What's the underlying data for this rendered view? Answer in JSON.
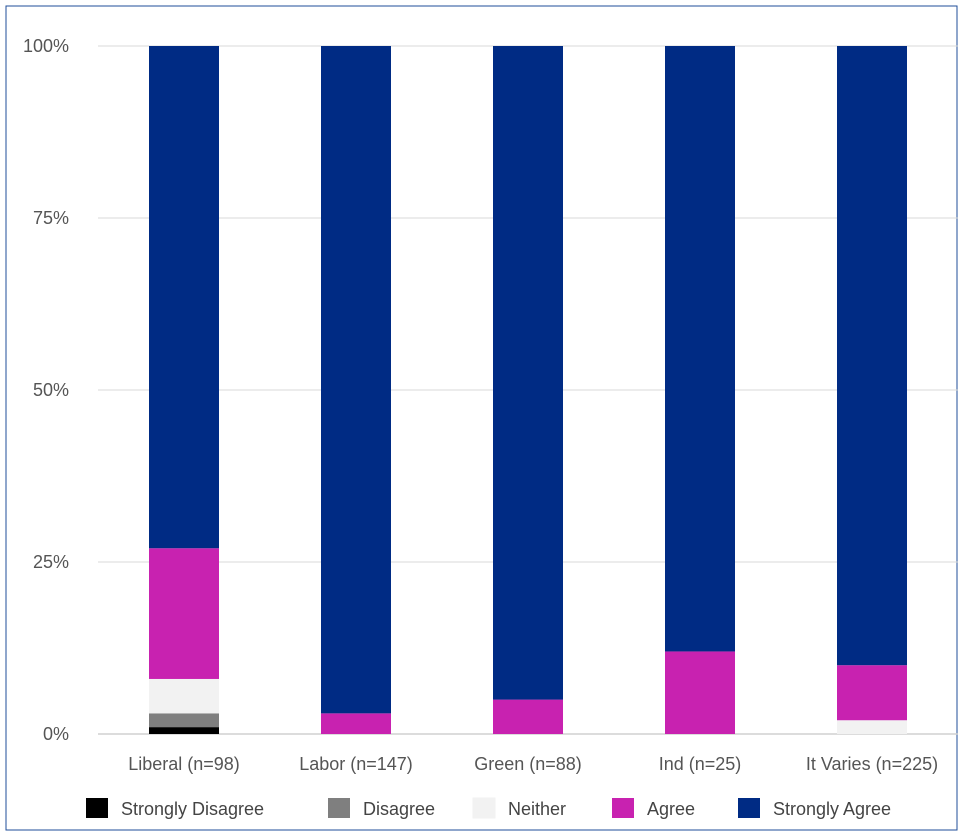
{
  "chart_data": {
    "type": "bar",
    "stacked": true,
    "percent": true,
    "categories": [
      "Liberal (n=98)",
      "Labor (n=147)",
      "Green (n=88)",
      "Ind (n=25)",
      "It Varies (n=225)"
    ],
    "series": [
      {
        "name": "Strongly Disagree",
        "color": "#000000",
        "values": [
          1,
          0,
          0,
          0,
          0
        ]
      },
      {
        "name": "Disagree",
        "color": "#7f7f7f",
        "values": [
          2,
          0,
          0,
          0,
          0
        ]
      },
      {
        "name": "Neither",
        "color": "#f2f2f2",
        "values": [
          5,
          0,
          0,
          0,
          2
        ]
      },
      {
        "name": "Agree",
        "color": "#c822b0",
        "values": [
          19,
          3,
          5,
          12,
          8
        ]
      },
      {
        "name": "Strongly Agree",
        "color": "#002b84",
        "values": [
          73,
          97,
          95,
          88,
          90
        ]
      }
    ],
    "yticks": [
      "0%",
      "25%",
      "50%",
      "75%",
      "100%"
    ],
    "ylim": [
      0,
      100
    ],
    "grid": true,
    "legend": "bottom"
  }
}
